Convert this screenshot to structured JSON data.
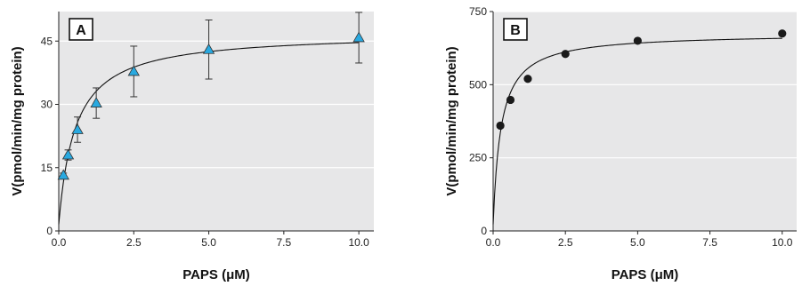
{
  "chart_data": [
    {
      "panel": "A",
      "type": "scatter",
      "marker": "triangle",
      "marker_color": "#29a9e0",
      "fit_curve": true,
      "grid": "horizontal",
      "xlabel": "PAPS (μM)",
      "ylabel": "V(pmol/min/mg protein)",
      "xlim": [
        0,
        10.5
      ],
      "ylim": [
        0,
        52
      ],
      "xticks": [
        "0.0",
        "2.5",
        "5.0",
        "7.5",
        "10.0"
      ],
      "yticks": [
        "0",
        "15",
        "30",
        "45"
      ],
      "x": [
        0.156,
        0.3125,
        0.625,
        1.25,
        2.5,
        5.0,
        10.0
      ],
      "y": [
        13.2,
        18.0,
        24.0,
        30.3,
        37.8,
        43.0,
        45.8
      ],
      "error": [
        0.5,
        1.2,
        3.0,
        3.6,
        6.0,
        7.0,
        6.0
      ]
    },
    {
      "panel": "B",
      "type": "scatter",
      "marker": "circle",
      "marker_color": "#1a1a1a",
      "fit_curve": true,
      "grid": "horizontal",
      "xlabel": "PAPS (μM)",
      "ylabel": "V(pmol/min/mg protein)",
      "xlim": [
        0,
        10.5
      ],
      "ylim": [
        0,
        750
      ],
      "xticks": [
        "0.0",
        "2.5",
        "5.0",
        "7.5",
        "10.0"
      ],
      "yticks": [
        "0",
        "250",
        "500",
        "750"
      ],
      "x": [
        0.25,
        0.6,
        1.2,
        2.5,
        5.0,
        10.0
      ],
      "y": [
        360,
        448,
        520,
        605,
        650,
        675
      ]
    }
  ]
}
